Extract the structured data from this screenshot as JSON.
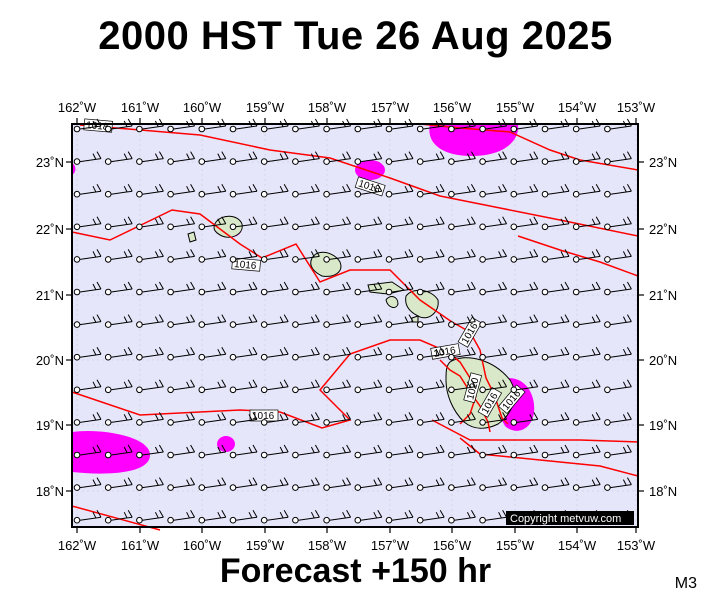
{
  "header": {
    "title": "2000 HST Tue 26 Aug 2025"
  },
  "footer": {
    "subtitle": "Forecast +150 hr",
    "model": "M3"
  },
  "map": {
    "lon_labels": [
      "162˚W",
      "161˚W",
      "160˚W",
      "159˚W",
      "158˚W",
      "157˚W",
      "156˚W",
      "155˚W",
      "154˚W",
      "153˚W"
    ],
    "lat_labels": [
      "23˚N",
      "22˚N",
      "21˚N",
      "20˚N",
      "19˚N",
      "18˚N"
    ],
    "copyright": "Copyright metvuw.com",
    "isobar_labels": [
      "1018",
      "1018",
      "1016",
      "1016",
      "1016",
      "1016",
      "1020",
      "1016",
      "1016"
    ],
    "colors": {
      "ocean": "#e6e6fa",
      "rain": "#ff00ff",
      "isobar": "#ff0000",
      "land": "#d8e8c8"
    }
  }
}
